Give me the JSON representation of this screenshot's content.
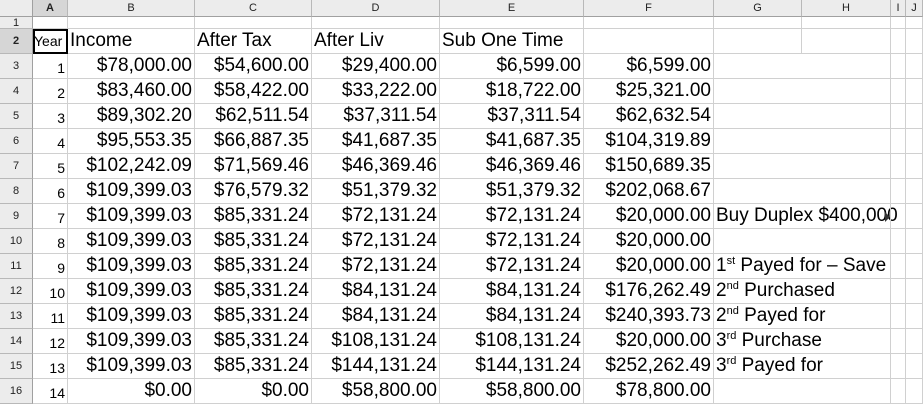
{
  "columns": [
    "A",
    "B",
    "C",
    "D",
    "E",
    "F",
    "G",
    "H",
    "I",
    "J"
  ],
  "row_numbers": [
    "1",
    "2",
    "3",
    "4",
    "5",
    "6",
    "7",
    "8",
    "9",
    "10",
    "11",
    "12",
    "13",
    "14",
    "15",
    "16"
  ],
  "headers": {
    "year": "Year",
    "income": "Income",
    "after_tax": "After Tax",
    "after_liv": "After Liv",
    "sub_one_time": "Sub One Time"
  },
  "rows": [
    {
      "year": "1",
      "income": "$78,000.00",
      "after_tax": "$54,600.00",
      "after_liv": "$29,400.00",
      "sub_one_time": "$6,599.00",
      "f": "$6,599.00",
      "note": ""
    },
    {
      "year": "2",
      "income": "$83,460.00",
      "after_tax": "$58,422.00",
      "after_liv": "$33,222.00",
      "sub_one_time": "$18,722.00",
      "f": "$25,321.00",
      "note": ""
    },
    {
      "year": "3",
      "income": "$89,302.20",
      "after_tax": "$62,511.54",
      "after_liv": "$37,311.54",
      "sub_one_time": "$37,311.54",
      "f": "$62,632.54",
      "note": ""
    },
    {
      "year": "4",
      "income": "$95,553.35",
      "after_tax": "$66,887.35",
      "after_liv": "$41,687.35",
      "sub_one_time": "$41,687.35",
      "f": "$104,319.89",
      "note": ""
    },
    {
      "year": "5",
      "income": "$102,242.09",
      "after_tax": "$71,569.46",
      "after_liv": "$46,369.46",
      "sub_one_time": "$46,369.46",
      "f": "$150,689.35",
      "note": ""
    },
    {
      "year": "6",
      "income": "$109,399.03",
      "after_tax": "$76,579.32",
      "after_liv": "$51,379.32",
      "sub_one_time": "$51,379.32",
      "f": "$202,068.67",
      "note": ""
    },
    {
      "year": "7",
      "income": "$109,399.03",
      "after_tax": "$85,331.24",
      "after_liv": "$72,131.24",
      "sub_one_time": "$72,131.24",
      "f": "$20,000.00",
      "note": "Buy Duplex $400,000"
    },
    {
      "year": "8",
      "income": "$109,399.03",
      "after_tax": "$85,331.24",
      "after_liv": "$72,131.24",
      "sub_one_time": "$72,131.24",
      "f": "$20,000.00",
      "note": ""
    },
    {
      "year": "9",
      "income": "$109,399.03",
      "after_tax": "$85,331.24",
      "after_liv": "$72,131.24",
      "sub_one_time": "$72,131.24",
      "f": "$20,000.00",
      "note_num": "1",
      "note_sup": "st",
      "note_rest": " Payed for – Save"
    },
    {
      "year": "10",
      "income": "$109,399.03",
      "after_tax": "$85,331.24",
      "after_liv": "$84,131.24",
      "sub_one_time": "$84,131.24",
      "f": "$176,262.49",
      "note_num": "2",
      "note_sup": "nd",
      "note_rest": " Purchased"
    },
    {
      "year": "11",
      "income": "$109,399.03",
      "after_tax": "$85,331.24",
      "after_liv": "$84,131.24",
      "sub_one_time": "$84,131.24",
      "f": "$240,393.73",
      "note_num": "2",
      "note_sup": "nd",
      "note_rest": " Payed for"
    },
    {
      "year": "12",
      "income": "$109,399.03",
      "after_tax": "$85,331.24",
      "after_liv": "$108,131.24",
      "sub_one_time": "$108,131.24",
      "f": "$20,000.00",
      "note_num": "3",
      "note_sup": "rd",
      "note_rest": " Purchase"
    },
    {
      "year": "13",
      "income": "$109,399.03",
      "after_tax": "$85,331.24",
      "after_liv": "$144,131.24",
      "sub_one_time": "$144,131.24",
      "f": "$252,262.49",
      "note_num": "3",
      "note_sup": "rd",
      "note_rest": " Payed for"
    },
    {
      "year": "14",
      "income": "$0.00",
      "after_tax": "$0.00",
      "after_liv": "$58,800.00",
      "sub_one_time": "$58,800.00",
      "f": "$78,800.00",
      "note": ""
    }
  ],
  "icons": {
    "overflow_indicator": "arrow-right-icon"
  }
}
